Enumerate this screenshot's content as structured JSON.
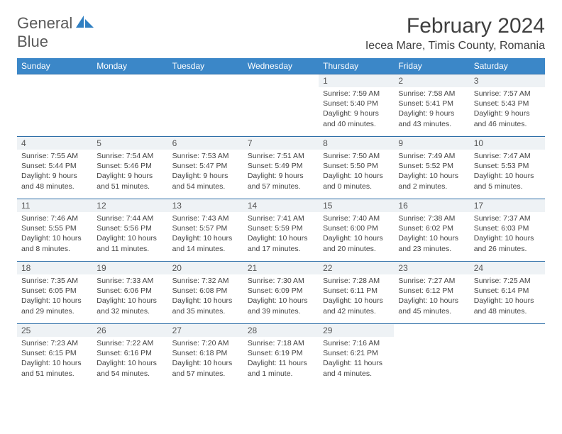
{
  "logo": {
    "text_a": "General",
    "text_b": "Blue"
  },
  "title": "February 2024",
  "location": "Iecea Mare, Timis County, Romania",
  "colors": {
    "header_bg": "#3b87c8",
    "header_text": "#ffffff",
    "row_border": "#2f6fa8",
    "daynum_bg": "#eef2f5",
    "text": "#444444",
    "logo_gray": "#5a5a5a",
    "logo_blue": "#2f7fc2",
    "background": "#ffffff"
  },
  "weekdays": [
    "Sunday",
    "Monday",
    "Tuesday",
    "Wednesday",
    "Thursday",
    "Friday",
    "Saturday"
  ],
  "layout": {
    "first_weekday_index": 4,
    "days_in_month": 29
  },
  "font": {
    "body_size_pt": 10.5,
    "daynum_size_pt": 12,
    "header_size_pt": 12,
    "title_size_pt": 30,
    "location_size_pt": 16
  },
  "days": [
    {
      "n": 1,
      "sunrise": "7:59 AM",
      "sunset": "5:40 PM",
      "daylight": "9 hours and 40 minutes."
    },
    {
      "n": 2,
      "sunrise": "7:58 AM",
      "sunset": "5:41 PM",
      "daylight": "9 hours and 43 minutes."
    },
    {
      "n": 3,
      "sunrise": "7:57 AM",
      "sunset": "5:43 PM",
      "daylight": "9 hours and 46 minutes."
    },
    {
      "n": 4,
      "sunrise": "7:55 AM",
      "sunset": "5:44 PM",
      "daylight": "9 hours and 48 minutes."
    },
    {
      "n": 5,
      "sunrise": "7:54 AM",
      "sunset": "5:46 PM",
      "daylight": "9 hours and 51 minutes."
    },
    {
      "n": 6,
      "sunrise": "7:53 AM",
      "sunset": "5:47 PM",
      "daylight": "9 hours and 54 minutes."
    },
    {
      "n": 7,
      "sunrise": "7:51 AM",
      "sunset": "5:49 PM",
      "daylight": "9 hours and 57 minutes."
    },
    {
      "n": 8,
      "sunrise": "7:50 AM",
      "sunset": "5:50 PM",
      "daylight": "10 hours and 0 minutes."
    },
    {
      "n": 9,
      "sunrise": "7:49 AM",
      "sunset": "5:52 PM",
      "daylight": "10 hours and 2 minutes."
    },
    {
      "n": 10,
      "sunrise": "7:47 AM",
      "sunset": "5:53 PM",
      "daylight": "10 hours and 5 minutes."
    },
    {
      "n": 11,
      "sunrise": "7:46 AM",
      "sunset": "5:55 PM",
      "daylight": "10 hours and 8 minutes."
    },
    {
      "n": 12,
      "sunrise": "7:44 AM",
      "sunset": "5:56 PM",
      "daylight": "10 hours and 11 minutes."
    },
    {
      "n": 13,
      "sunrise": "7:43 AM",
      "sunset": "5:57 PM",
      "daylight": "10 hours and 14 minutes."
    },
    {
      "n": 14,
      "sunrise": "7:41 AM",
      "sunset": "5:59 PM",
      "daylight": "10 hours and 17 minutes."
    },
    {
      "n": 15,
      "sunrise": "7:40 AM",
      "sunset": "6:00 PM",
      "daylight": "10 hours and 20 minutes."
    },
    {
      "n": 16,
      "sunrise": "7:38 AM",
      "sunset": "6:02 PM",
      "daylight": "10 hours and 23 minutes."
    },
    {
      "n": 17,
      "sunrise": "7:37 AM",
      "sunset": "6:03 PM",
      "daylight": "10 hours and 26 minutes."
    },
    {
      "n": 18,
      "sunrise": "7:35 AM",
      "sunset": "6:05 PM",
      "daylight": "10 hours and 29 minutes."
    },
    {
      "n": 19,
      "sunrise": "7:33 AM",
      "sunset": "6:06 PM",
      "daylight": "10 hours and 32 minutes."
    },
    {
      "n": 20,
      "sunrise": "7:32 AM",
      "sunset": "6:08 PM",
      "daylight": "10 hours and 35 minutes."
    },
    {
      "n": 21,
      "sunrise": "7:30 AM",
      "sunset": "6:09 PM",
      "daylight": "10 hours and 39 minutes."
    },
    {
      "n": 22,
      "sunrise": "7:28 AM",
      "sunset": "6:11 PM",
      "daylight": "10 hours and 42 minutes."
    },
    {
      "n": 23,
      "sunrise": "7:27 AM",
      "sunset": "6:12 PM",
      "daylight": "10 hours and 45 minutes."
    },
    {
      "n": 24,
      "sunrise": "7:25 AM",
      "sunset": "6:14 PM",
      "daylight": "10 hours and 48 minutes."
    },
    {
      "n": 25,
      "sunrise": "7:23 AM",
      "sunset": "6:15 PM",
      "daylight": "10 hours and 51 minutes."
    },
    {
      "n": 26,
      "sunrise": "7:22 AM",
      "sunset": "6:16 PM",
      "daylight": "10 hours and 54 minutes."
    },
    {
      "n": 27,
      "sunrise": "7:20 AM",
      "sunset": "6:18 PM",
      "daylight": "10 hours and 57 minutes."
    },
    {
      "n": 28,
      "sunrise": "7:18 AM",
      "sunset": "6:19 PM",
      "daylight": "11 hours and 1 minute."
    },
    {
      "n": 29,
      "sunrise": "7:16 AM",
      "sunset": "6:21 PM",
      "daylight": "11 hours and 4 minutes."
    }
  ],
  "labels": {
    "sunrise": "Sunrise:",
    "sunset": "Sunset:",
    "daylight": "Daylight:"
  }
}
